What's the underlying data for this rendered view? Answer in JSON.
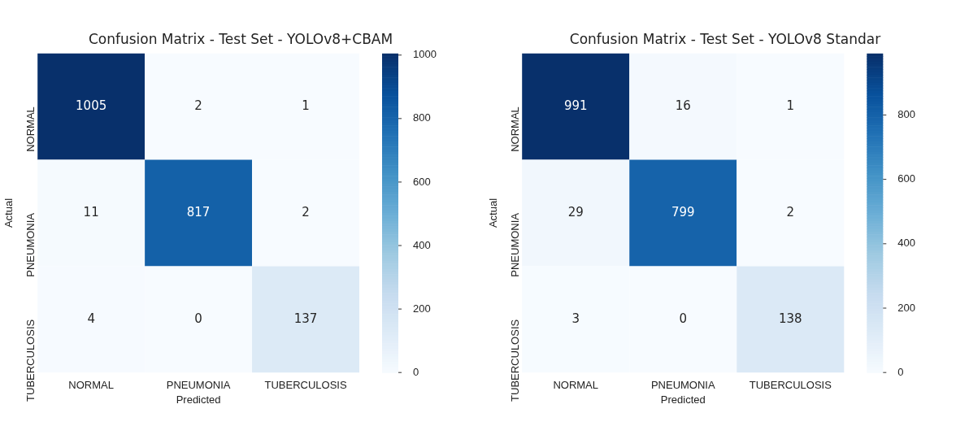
{
  "chart_data": [
    {
      "type": "heatmap",
      "title": "Confusion Matrix - Test Set - YOLOv8+CBAM",
      "xlabel": "Predicted",
      "ylabel": "Actual",
      "categories": [
        "NORMAL",
        "PNEUMONIA",
        "TUBERCULOSIS"
      ],
      "y_categories": [
        "NORMAL",
        "PNEUMONIA",
        "TUBERCULOSIS"
      ],
      "cells": [
        [
          1005,
          2,
          1
        ],
        [
          11,
          817,
          2
        ],
        [
          4,
          0,
          137
        ]
      ],
      "clim": [
        0,
        1005
      ],
      "cticks": [
        0,
        200,
        400,
        600,
        800,
        1000
      ],
      "data_labels": true
    },
    {
      "type": "heatmap",
      "title": "Confusion Matrix - Test Set - YOLOv8 Standar",
      "xlabel": "Predicted",
      "ylabel": "Actual",
      "categories": [
        "NORMAL",
        "PNEUMONIA",
        "TUBERCULOSIS"
      ],
      "y_categories": [
        "NORMAL",
        "PNEUMONIA",
        "TUBERCULOSIS"
      ],
      "cells": [
        [
          991,
          16,
          1
        ],
        [
          29,
          799,
          2
        ],
        [
          3,
          0,
          138
        ]
      ],
      "clim": [
        0,
        991
      ],
      "cticks": [
        0,
        200,
        400,
        600,
        800
      ],
      "data_labels": true
    }
  ]
}
